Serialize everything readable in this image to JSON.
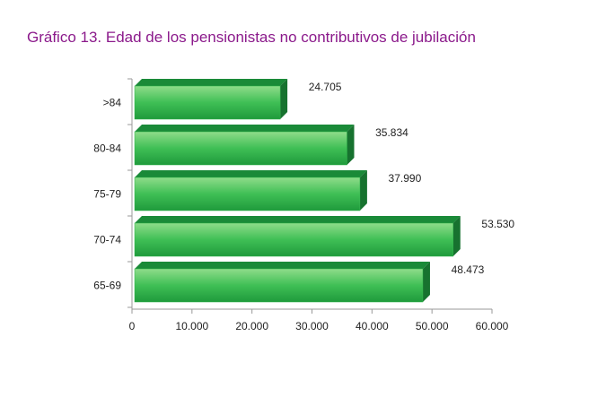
{
  "chart_data": {
    "type": "bar",
    "orientation": "horizontal",
    "title": "Gráfico 13. Edad de los pensionistas no contributivos de jubilación",
    "categories": [
      ">84",
      "80-84",
      "75-79",
      "70-74",
      "65-69"
    ],
    "values": [
      24705,
      35834,
      37990,
      53530,
      48473
    ],
    "value_labels": [
      "24.705",
      "35.834",
      "37.990",
      "53.530",
      "48.473"
    ],
    "color": "#2fb54a",
    "xlim": [
      0,
      60000
    ],
    "xticks": [
      0,
      {
        "value": 10000,
        "label": "10.000"
      },
      {
        "value": 20000,
        "label": "20.000"
      },
      {
        "value": 30000,
        "label": "30.000"
      },
      {
        "value": 40000,
        "label": "40.000"
      },
      {
        "value": 50000,
        "label": "50.000"
      },
      {
        "value": 60000,
        "label": "60.000"
      }
    ],
    "grid": false
  }
}
